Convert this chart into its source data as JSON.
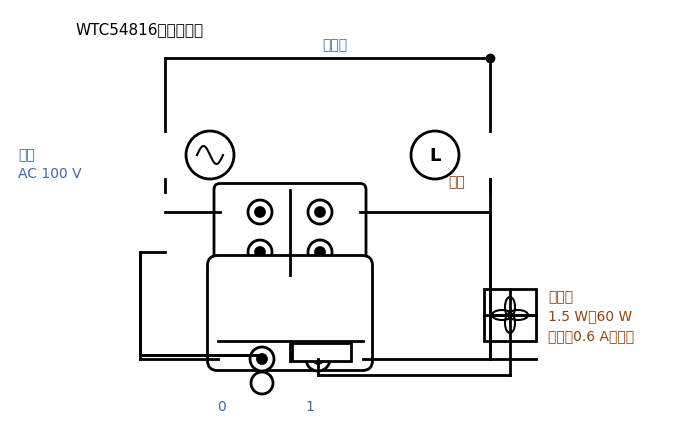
{
  "title": "WTC54816の配線方法",
  "title_color": "#000000",
  "title_fontsize": 11,
  "bg_color": "#ffffff",
  "line_color": "#000000",
  "text_color_blue": "#4169a0",
  "text_color_brown": "#8B4513",
  "label_dengen": "電源\nAC 100 V",
  "label_setchi": "接地側",
  "label_shomei": "照明",
  "label_kankisen": "換気扇\n1.5 W～60 W\n（最大0.6 Aまで）",
  "label_0": "0",
  "label_1": "1",
  "figw": 7.0,
  "figh": 4.41,
  "dpi": 100
}
